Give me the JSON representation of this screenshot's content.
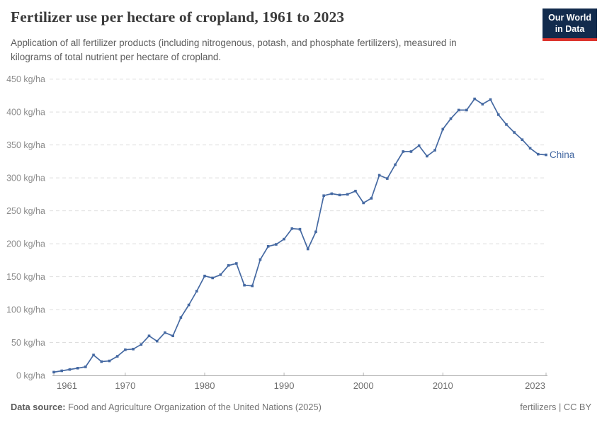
{
  "header": {
    "title": "Fertilizer use per hectare of cropland, 1961 to 2023",
    "subtitle": "Application of all fertilizer products (including nitrogenous, potash, and phosphate fertilizers), measured in kilograms of total nutrient per hectare of cropland.",
    "logo": {
      "line1": "Our World",
      "line2": "in Data",
      "bg_color": "#122b4d",
      "accent_color": "#dd352e"
    }
  },
  "footer": {
    "source_label": "Data source:",
    "source_text": " Food and Agriculture Organization of the United Nations (2025)",
    "note": "fertilizers",
    "separator": " | ",
    "license": "CC BY"
  },
  "colors": {
    "series_blue": "#4569a2",
    "gridline": "#dedede",
    "axis": "#a8a8a8",
    "tick": "#b4b4b4",
    "y_label": "#8c8c8c",
    "x_label": "#6f6f6f"
  },
  "chart_data": {
    "type": "line",
    "title": "Fertilizer use per hectare of cropland, 1961 to 2023",
    "unit": "kg/ha",
    "xlim": [
      1961,
      2023
    ],
    "ylim": [
      0,
      450
    ],
    "grid": "horizontal dashed",
    "legend": "end-of-line label",
    "x_ticks": [
      1961,
      1970,
      1980,
      1990,
      2000,
      2010,
      2023
    ],
    "y_ticks": [
      0,
      50,
      100,
      150,
      200,
      250,
      300,
      350,
      400,
      450
    ],
    "series": [
      {
        "name": "China",
        "color": "#4569a2",
        "x": [
          1961,
          1962,
          1963,
          1964,
          1965,
          1966,
          1967,
          1968,
          1969,
          1970,
          1971,
          1972,
          1973,
          1974,
          1975,
          1976,
          1977,
          1978,
          1979,
          1980,
          1981,
          1982,
          1983,
          1984,
          1985,
          1986,
          1987,
          1988,
          1989,
          1990,
          1991,
          1992,
          1993,
          1994,
          1995,
          1996,
          1997,
          1998,
          1999,
          2000,
          2001,
          2002,
          2003,
          2004,
          2005,
          2006,
          2007,
          2008,
          2009,
          2010,
          2011,
          2012,
          2013,
          2014,
          2015,
          2016,
          2017,
          2018,
          2019,
          2020,
          2021,
          2022,
          2023
        ],
        "values": [
          5,
          7,
          9,
          11,
          13,
          31,
          21,
          22,
          29,
          39,
          40,
          47,
          60,
          52,
          65,
          60,
          88,
          107,
          128,
          151,
          148,
          153,
          167,
          170,
          137,
          136,
          176,
          196,
          199,
          207,
          223,
          222,
          192,
          218,
          273,
          276,
          274,
          275,
          280,
          262,
          269,
          304,
          299,
          320,
          340,
          340,
          349,
          333,
          342,
          374,
          390,
          403,
          403,
          420,
          412,
          419,
          396,
          381,
          369,
          358,
          345,
          336,
          335
        ]
      }
    ]
  }
}
